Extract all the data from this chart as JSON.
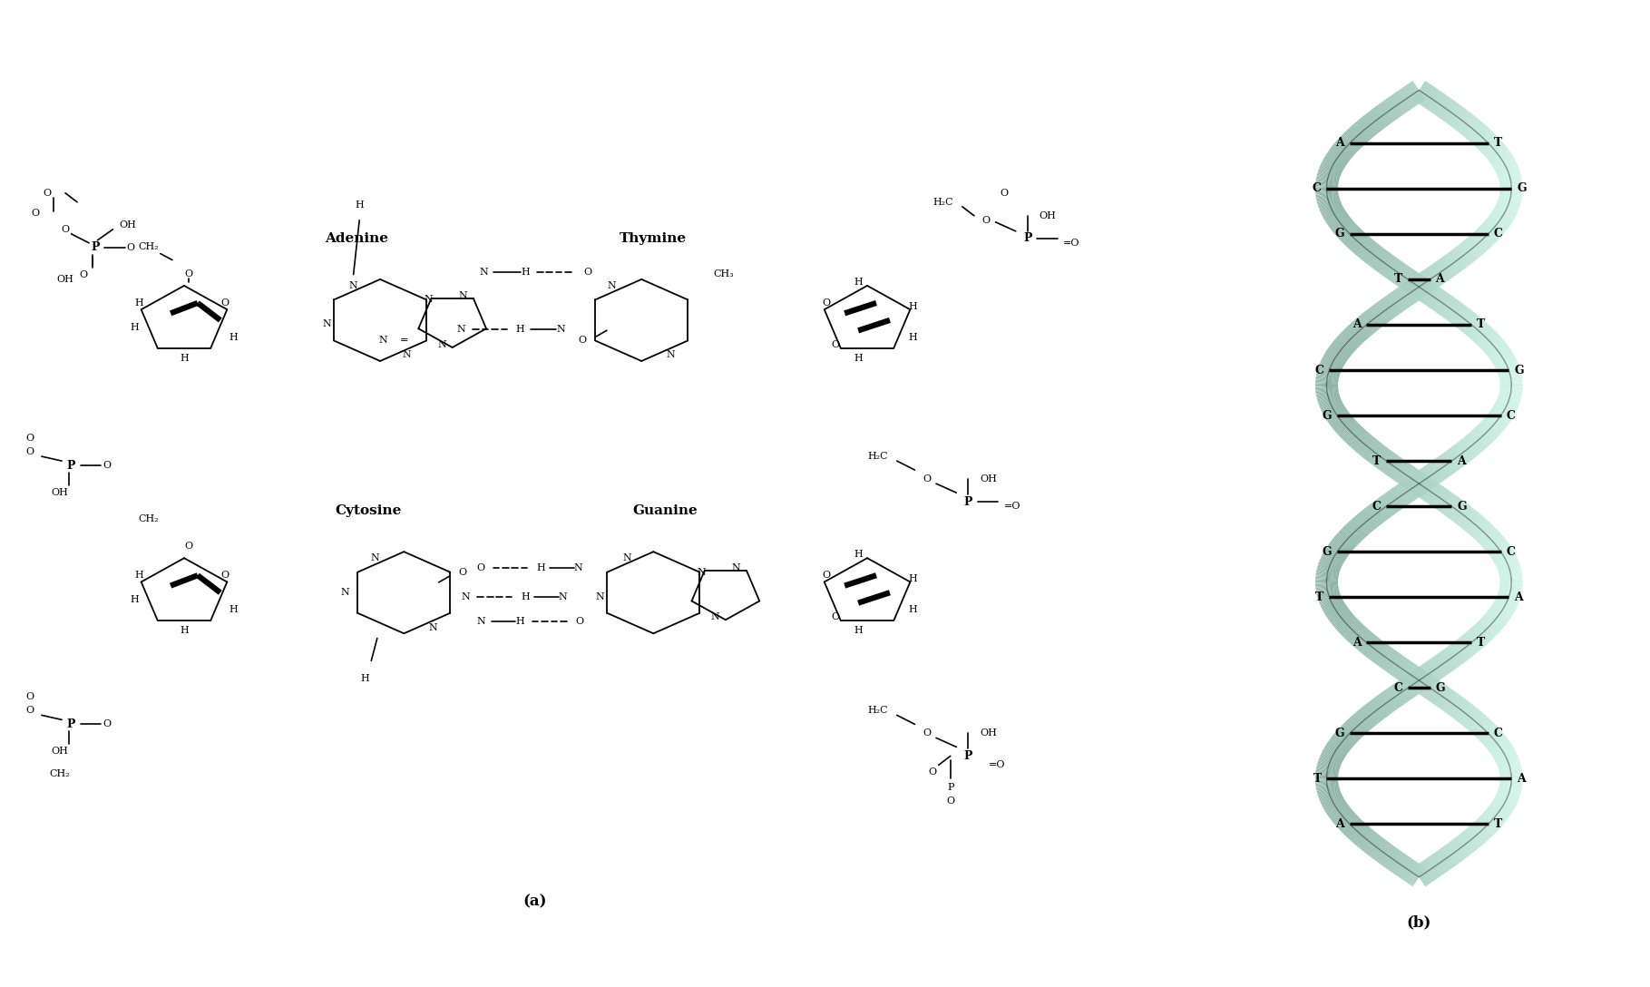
{
  "title_a": "(a)",
  "title_b": "(b)",
  "bg_color": "#ffffff",
  "label_adenine": "Adenine",
  "label_thymine": "Thymine",
  "label_cytosine": "Cytosine",
  "label_guanine": "Guanine",
  "dna_pairs_top": [
    "AT",
    "CG",
    "GC",
    "TA"
  ],
  "dna_pairs_mid1": [
    "AT",
    "CG",
    "GC",
    "TA"
  ],
  "dna_pairs_mid2": [
    "CG",
    "GC",
    "TA",
    "AT"
  ],
  "dna_pairs_bot": [
    "CG",
    "GC",
    "TA",
    "AT"
  ],
  "helix_color": "#5f9ea0",
  "line_color": "#000000",
  "text_color": "#000000",
  "font_size_label": 11,
  "font_size_pair": 9
}
